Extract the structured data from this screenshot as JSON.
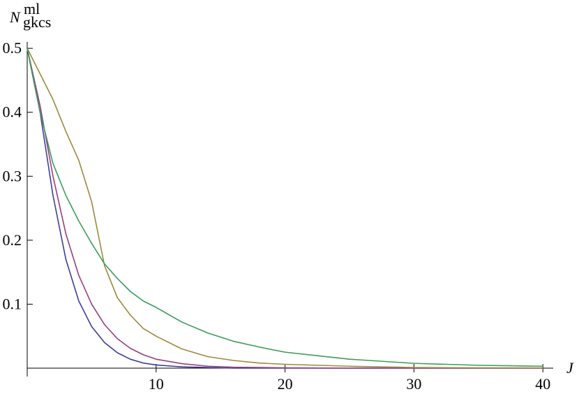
{
  "chart_data": {
    "type": "line",
    "xlabel": "J",
    "ylabel": {
      "main": "N",
      "sup": "ml",
      "sub": "gkcs"
    },
    "x": [
      0,
      1,
      2,
      3,
      4,
      5,
      6,
      7,
      8,
      9,
      10,
      12,
      14,
      16,
      18,
      20,
      25,
      30,
      35,
      40
    ],
    "series": [
      {
        "color": "#3d3d9c",
        "values": [
          0.5,
          0.4,
          0.27,
          0.17,
          0.105,
          0.065,
          0.04,
          0.024,
          0.014,
          0.008,
          0.005,
          0.002,
          0.001,
          0,
          0,
          0,
          0,
          0,
          0,
          0
        ]
      },
      {
        "color": "#993d7a",
        "values": [
          0.5,
          0.41,
          0.3,
          0.21,
          0.145,
          0.1,
          0.068,
          0.046,
          0.031,
          0.021,
          0.014,
          0.007,
          0.003,
          0.0015,
          0.001,
          0.0005,
          0,
          0,
          0,
          0
        ]
      },
      {
        "color": "#9c8a3c",
        "values": [
          0.5,
          0.46,
          0.42,
          0.37,
          0.325,
          0.26,
          0.16,
          0.11,
          0.083,
          0.062,
          0.05,
          0.03,
          0.018,
          0.012,
          0.008,
          0.006,
          0.003,
          0.001,
          0.0005,
          0.0003
        ]
      },
      {
        "color": "#3c9c5a",
        "values": [
          0.5,
          0.4,
          0.32,
          0.27,
          0.23,
          0.195,
          0.163,
          0.14,
          0.12,
          0.105,
          0.095,
          0.072,
          0.055,
          0.042,
          0.033,
          0.025,
          0.014,
          0.0075,
          0.0045,
          0.003
        ]
      }
    ],
    "xlim": [
      0,
      40.8
    ],
    "ylim": [
      0,
      0.51
    ],
    "xticks": [
      10,
      20,
      30,
      40
    ],
    "yticks": [
      0.1,
      0.2,
      0.3,
      0.4,
      0.5
    ]
  }
}
